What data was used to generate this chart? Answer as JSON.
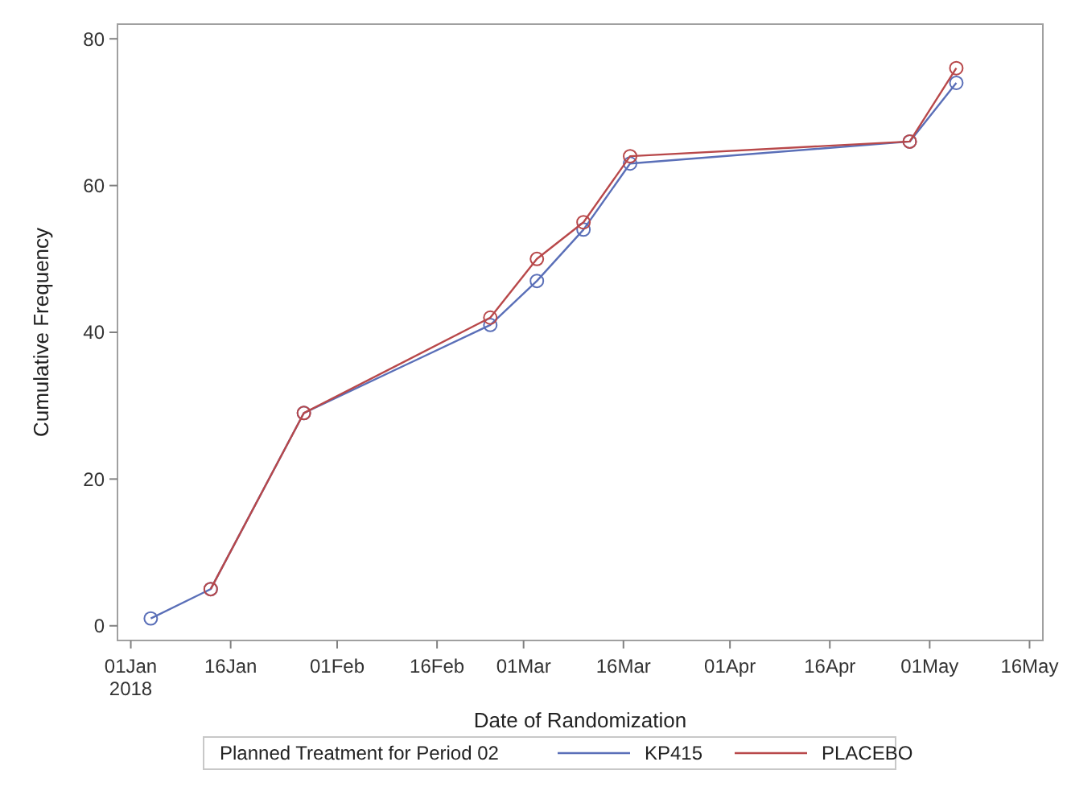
{
  "chart_data": {
    "type": "line",
    "xlabel": "Date of Randomization",
    "ylabel": "Cumulative Frequency",
    "legend_title": "Planned Treatment for Period 02",
    "legend": "bottom",
    "marker": "circle",
    "line_style": "solid",
    "grid": false,
    "xlim": [
      "2017-12-30",
      "2018-05-18"
    ],
    "xticks": [
      {
        "value": "2018-01-01",
        "label": "01Jan\n2018"
      },
      {
        "value": "2018-01-16",
        "label": "16Jan"
      },
      {
        "value": "2018-02-01",
        "label": "01Feb"
      },
      {
        "value": "2018-02-16",
        "label": "16Feb"
      },
      {
        "value": "2018-03-01",
        "label": "01Mar"
      },
      {
        "value": "2018-03-16",
        "label": "16Mar"
      },
      {
        "value": "2018-04-01",
        "label": "01Apr"
      },
      {
        "value": "2018-04-16",
        "label": "16Apr"
      },
      {
        "value": "2018-05-01",
        "label": "01May"
      },
      {
        "value": "2018-05-16",
        "label": "16May"
      }
    ],
    "ylim": [
      -2,
      82
    ],
    "yticks": [
      0,
      20,
      40,
      60,
      80
    ],
    "series": [
      {
        "name": "KP415",
        "color": "#5a6fb8",
        "x": [
          "2018-01-04",
          "2018-01-13",
          "2018-01-27",
          "2018-02-24",
          "2018-03-03",
          "2018-03-10",
          "2018-03-17",
          "2018-04-28",
          "2018-05-05"
        ],
        "values": [
          1,
          5,
          29,
          41,
          47,
          54,
          63,
          66,
          74
        ]
      },
      {
        "name": "PLACEBO",
        "color": "#b8484a",
        "x": [
          "2018-01-13",
          "2018-01-27",
          "2018-02-24",
          "2018-03-03",
          "2018-03-10",
          "2018-03-17",
          "2018-04-28",
          "2018-05-05"
        ],
        "values": [
          5,
          29,
          42,
          50,
          55,
          64,
          66,
          76
        ]
      }
    ]
  }
}
